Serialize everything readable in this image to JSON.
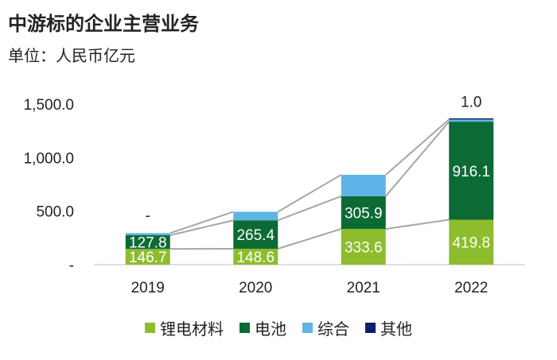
{
  "chart_data": {
    "type": "bar",
    "stacked": true,
    "title": "中游标的企业主营业务",
    "subtitle": "单位：人民币亿元",
    "categories": [
      "2019",
      "2020",
      "2021",
      "2022"
    ],
    "ylim": [
      0,
      1500
    ],
    "yticks": [
      {
        "value": 0,
        "label": "-"
      },
      {
        "value": 500,
        "label": "500.0"
      },
      {
        "value": 1000,
        "label": "1,000.0"
      },
      {
        "value": 1500,
        "label": "1,500.0"
      }
    ],
    "series": [
      {
        "name": "锂电材料",
        "color": "#8dbd2c",
        "values": [
          146.7,
          148.6,
          333.6,
          419.8
        ],
        "labels": [
          "146.7",
          "148.6",
          "333.6",
          "419.8"
        ],
        "label_color": "#ffffff"
      },
      {
        "name": "电池",
        "color": "#0c6a35",
        "values": [
          127.8,
          265.4,
          305.9,
          916.1
        ],
        "labels": [
          "127.8",
          "265.4",
          "305.9",
          "916.1"
        ],
        "label_color": "#ffffff"
      },
      {
        "name": "综合",
        "color": "#5eb4e6",
        "values": [
          20,
          80,
          200,
          20
        ],
        "labels": [
          null,
          null,
          null,
          null
        ],
        "label_color": "#ffffff"
      },
      {
        "name": "其他",
        "color": "#0d1f6b",
        "values": [
          0,
          0,
          0,
          1.0
        ],
        "labels": [
          "-",
          null,
          null,
          "1.0"
        ],
        "label_color": "#222222",
        "label_outside": true
      }
    ],
    "connector_color": "#a6a6a6",
    "legend_position": "bottom"
  }
}
